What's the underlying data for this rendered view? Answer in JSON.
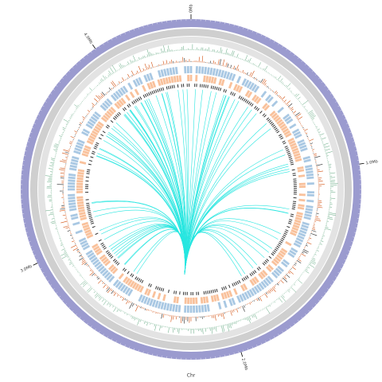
{
  "chart_data": {
    "type": "circos",
    "xlabel": "Chr",
    "xlim": [
      0,
      4.42
    ],
    "xticks": [
      {
        "value": 0,
        "label": "0Mb"
      },
      {
        "value": 1,
        "label": "1.0Mb"
      },
      {
        "value": 2,
        "label": "2.0Mb"
      },
      {
        "value": 3,
        "label": "3.0Mb"
      },
      {
        "value": 4,
        "label": "4.0Mb"
      }
    ]
  }
}
